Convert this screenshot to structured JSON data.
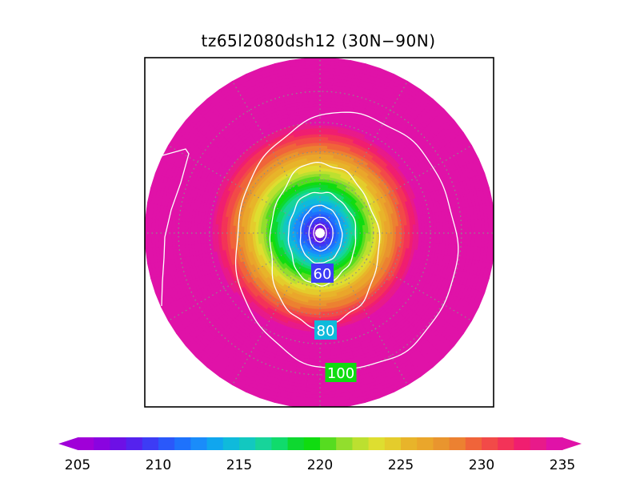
{
  "chart_data": {
    "type": "heatmap",
    "title": "tz65l2080dsh12 (30N−90N)",
    "projection": "north-polar-stereographic",
    "region": "30N−90N",
    "grid": true,
    "colorbar": {
      "min": 205,
      "max": 235,
      "step": 1,
      "ticks": [
        205,
        210,
        215,
        220,
        225,
        230,
        235
      ],
      "tick_labels": [
        "205",
        "210",
        "215",
        "220",
        "225",
        "230",
        "235"
      ],
      "colors": [
        "#a000d8",
        "#8a04e0",
        "#6d10e6",
        "#5522ee",
        "#3d3cf5",
        "#2a58fa",
        "#1e72fc",
        "#1a8cfa",
        "#10a6ee",
        "#0fbadb",
        "#12c8c0",
        "#17d49a",
        "#10db6c",
        "#0ed830",
        "#10dc10",
        "#56dc20",
        "#92de2d",
        "#bce030",
        "#dede30",
        "#e4cc2c",
        "#e8b42a",
        "#eaa62b",
        "#e9952e",
        "#ec8131",
        "#f0643a",
        "#f24a48",
        "#f33358",
        "#f01e70",
        "#e81a8a",
        "#e012a8"
      ],
      "orientation": "horizontal",
      "triangles": true
    },
    "contours": [
      {
        "value": 60,
        "label": "60"
      },
      {
        "value": 80,
        "label": "80"
      },
      {
        "value": 100,
        "label": "100"
      }
    ]
  }
}
